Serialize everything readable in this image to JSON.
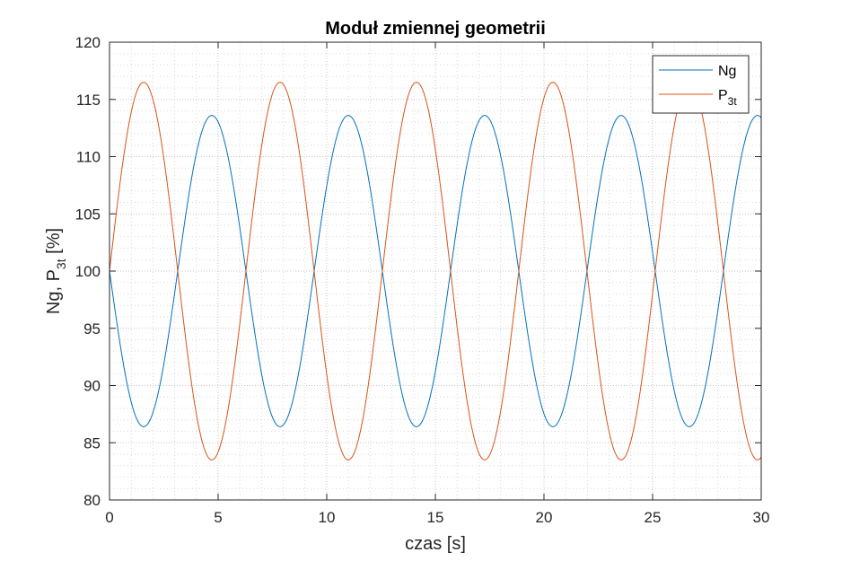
{
  "chart_data": {
    "type": "line",
    "title": "Moduł zmiennej geometrii",
    "xlabel": "czas [s]",
    "ylabel": {
      "main": "Ng, P",
      "sub": "3t",
      "tail": " [%]"
    },
    "xlim": [
      0,
      30
    ],
    "ylim": [
      80,
      120
    ],
    "xticks": [
      0,
      5,
      10,
      15,
      20,
      25,
      30
    ],
    "yticks": [
      80,
      85,
      90,
      95,
      100,
      105,
      110,
      115,
      120
    ],
    "grid": true,
    "minor_grid": true,
    "legend_position": "top-right",
    "series": [
      {
        "name": "Ng",
        "color": "#0072bd",
        "function": "sine",
        "offset": 100,
        "amplitude": -13.6,
        "period": 6.28,
        "x_samples": [
          0,
          1.57,
          3.14,
          4.71,
          6.28,
          7.85,
          9.42,
          10.99,
          12.57,
          14.14,
          15.71,
          17.28,
          18.85,
          20.42,
          21.99,
          23.56,
          25.13,
          26.7,
          28.27,
          29.85
        ],
        "y_samples": [
          100,
          86.4,
          100,
          113.6,
          100,
          86.4,
          100,
          113.6,
          100,
          86.4,
          100,
          113.6,
          100,
          86.4,
          100,
          113.6,
          100,
          86.4,
          100,
          113.6
        ]
      },
      {
        "name": "P",
        "name_sub": "3t",
        "color": "#d95319",
        "function": "sine",
        "offset": 100,
        "amplitude": 16.5,
        "period": 6.28,
        "x_samples": [
          0,
          1.57,
          3.14,
          4.71,
          6.28,
          7.85,
          9.42,
          10.99,
          12.57,
          14.14,
          15.71,
          17.28,
          18.85,
          20.42,
          21.99,
          23.56,
          25.13,
          26.7,
          28.27,
          29.85
        ],
        "y_samples": [
          100,
          116.5,
          100,
          83.5,
          100,
          116.5,
          100,
          83.5,
          100,
          116.5,
          100,
          83.5,
          100,
          116.5,
          100,
          83.5,
          100,
          116.5,
          100,
          83.5
        ]
      }
    ]
  }
}
